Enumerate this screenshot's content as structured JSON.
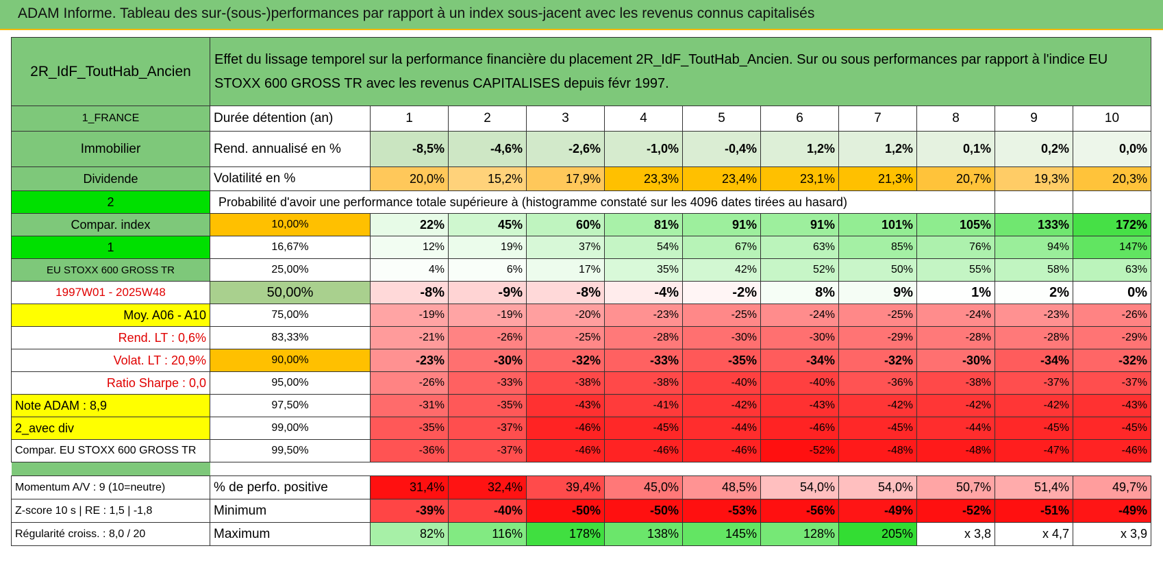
{
  "header": {
    "title": "ADAM Informe. Tableau des sur-(sous-)performances par rapport à un index sous-jacent avec les revenus connus capitalisés"
  },
  "table": {
    "name": "2R_IdF_ToutHab_Ancien",
    "description": "Effet du lissage temporel sur la performance financière du placement 2R_IdF_ToutHab_Ancien. Sur ou sous performances par rapport à l'indice EU STOXX 600 GROSS TR avec les revenus CAPITALISES depuis févr 1997.",
    "rows": [
      [
        "1_FRANCE",
        "Durée détention (an)",
        1,
        2,
        3,
        4,
        5,
        6,
        7,
        8,
        9,
        10
      ],
      [
        "Immobilier",
        "Rend. annualisé en %",
        "-8,5%",
        "-4,6%",
        "-2,6%",
        "-1,0%",
        "-0,4%",
        "1,2%",
        "1,2%",
        "0,1%",
        "0,2%",
        "0,0%"
      ],
      [
        "Dividende",
        "Volatilité en %",
        "20,0%",
        "15,2%",
        "17,9%",
        "23,3%",
        "23,4%",
        "23,1%",
        "21,3%",
        "20,7%",
        "19,3%",
        "20,3%"
      ],
      [
        "2",
        "Probabilité d'avoir une performance totale supérieure à (histogramme constaté sur les 4096 dates tirées au hasard)"
      ],
      [
        "Compar. index",
        "10,00%",
        "22%",
        "45%",
        "60%",
        "81%",
        "91%",
        "91%",
        "101%",
        "105%",
        "133%",
        "172%"
      ],
      [
        "1",
        "16,67%",
        "12%",
        "19%",
        "37%",
        "54%",
        "67%",
        "63%",
        "85%",
        "76%",
        "94%",
        "147%"
      ],
      [
        "EU STOXX 600 GROSS TR",
        "25,00%",
        "4%",
        "6%",
        "17%",
        "35%",
        "42%",
        "52%",
        "50%",
        "55%",
        "58%",
        "63%"
      ],
      [
        "1997W01 - 2025W48",
        "50,00%",
        "-8%",
        "-9%",
        "-8%",
        "-4%",
        "-2%",
        "8%",
        "9%",
        "1%",
        "2%",
        "0%"
      ],
      [
        "Moy. A06 - A10",
        "75,00%",
        "-19%",
        "-19%",
        "-20%",
        "-23%",
        "-25%",
        "-24%",
        "-25%",
        "-24%",
        "-23%",
        "-26%"
      ],
      [
        "Rend. LT :   0,6%",
        "83,33%",
        "-21%",
        "-26%",
        "-25%",
        "-28%",
        "-30%",
        "-30%",
        "-29%",
        "-28%",
        "-28%",
        "-29%"
      ],
      [
        "Volat. LT :   20,9%",
        "90,00%",
        "-23%",
        "-30%",
        "-32%",
        "-33%",
        "-35%",
        "-34%",
        "-32%",
        "-30%",
        "-34%",
        "-32%"
      ],
      [
        "Ratio Sharpe :    0,0",
        "95,00%",
        "-26%",
        "-33%",
        "-38%",
        "-38%",
        "-40%",
        "-40%",
        "-36%",
        "-38%",
        "-37%",
        "-37%"
      ],
      [
        "Note ADAM : 8,9",
        "97,50%",
        "-31%",
        "-35%",
        "-43%",
        "-41%",
        "-42%",
        "-43%",
        "-42%",
        "-42%",
        "-42%",
        "-43%"
      ],
      [
        "2_avec div",
        "99,00%",
        "-35%",
        "-37%",
        "-46%",
        "-45%",
        "-44%",
        "-46%",
        "-45%",
        "-44%",
        "-45%",
        "-45%"
      ],
      [
        "Compar. EU STOXX 600 GROSS TR",
        "99,50%",
        "-36%",
        "-37%",
        "-46%",
        "-46%",
        "-46%",
        "-52%",
        "-48%",
        "-48%",
        "-47%",
        "-46%"
      ]
    ],
    "summary_rows": [
      [
        "Momentum A/V : 9 (10=neutre)",
        "% de perfo. positive",
        "31,4%",
        "32,4%",
        "39,4%",
        "45,0%",
        "48,5%",
        "54,0%",
        "54,0%",
        "50,7%",
        "51,4%",
        "49,7%"
      ],
      [
        "Z-score 10 s | RE : 1,5 | -1,8",
        "Minimum",
        "-39%",
        "-40%",
        "-50%",
        "-50%",
        "-53%",
        "-56%",
        "-49%",
        "-52%",
        "-51%",
        "-49%"
      ],
      [
        "Régularité croiss. : 8,0 / 20",
        "Maximum",
        "82%",
        "116%",
        "178%",
        "138%",
        "145%",
        "128%",
        "205%",
        "x 3,8",
        "x 4,7",
        "x 3,9"
      ]
    ]
  }
}
